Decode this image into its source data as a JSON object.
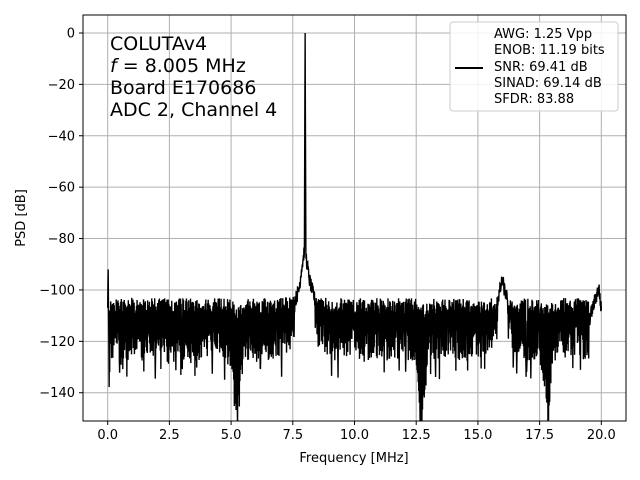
{
  "chart_data": {
    "type": "line",
    "xlabel": "Frequency [MHz]",
    "ylabel": "PSD [dB]",
    "xlim": [
      -1.0,
      21.0
    ],
    "ylim": [
      -151,
      7
    ],
    "xticks": [
      0.0,
      2.5,
      5.0,
      7.5,
      10.0,
      12.5,
      15.0,
      17.5,
      20.0
    ],
    "xtick_labels": [
      "0.0",
      "2.5",
      "5.0",
      "7.5",
      "10.0",
      "12.5",
      "15.0",
      "17.5",
      "20.0"
    ],
    "yticks": [
      0,
      -20,
      -40,
      -60,
      -80,
      -100,
      -120,
      -140
    ],
    "ytick_labels": [
      "0",
      "−20",
      "−40",
      "−60",
      "−80",
      "−100",
      "−120",
      "−140"
    ],
    "grid": true,
    "annotation": {
      "line1": "COLUTAv4",
      "line2_italic": "f",
      "line2_rest": " = 8.005 MHz",
      "line3": "Board E170686",
      "line4": "ADC 2, Channel 4"
    },
    "legend": {
      "placement": "top-right",
      "lines": [
        "AWG: 1.25 Vpp",
        "ENOB: 11.19 bits",
        "SNR: 69.41 dB",
        "SINAD: 69.14 dB",
        "SFDR: 83.88"
      ]
    },
    "series": [
      {
        "color": "#000000",
        "noise_band_db": [
          -135,
          -103
        ],
        "x": [
          0.0,
          0.02,
          0.05,
          0.1,
          0.3,
          0.6,
          1.0,
          1.5,
          2.0,
          2.5,
          3.0,
          3.5,
          4.0,
          4.5,
          5.0,
          5.25,
          5.5,
          6.0,
          6.5,
          7.0,
          7.4,
          7.6,
          7.75,
          7.85,
          7.92,
          7.97,
          8.0,
          8.03,
          8.08,
          8.15,
          8.25,
          8.4,
          8.6,
          9.0,
          9.5,
          10.0,
          10.5,
          11.0,
          11.5,
          12.0,
          12.5,
          12.65,
          13.0,
          13.5,
          14.0,
          14.5,
          15.0,
          15.5,
          15.8,
          15.95,
          16.0,
          16.05,
          16.2,
          16.5,
          17.0,
          17.5,
          17.85,
          18.0,
          18.5,
          19.0,
          19.5,
          19.9,
          20.0
        ],
        "y": [
          -107,
          -92,
          -124,
          -113,
          -111,
          -115,
          -110,
          -112,
          -109,
          -114,
          -111,
          -113,
          -110,
          -112,
          -115,
          -143,
          -111,
          -113,
          -112,
          -110,
          -108,
          -104,
          -100,
          -92,
          -88,
          -84,
          0,
          -86,
          -90,
          -95,
          -99,
          -104,
          -108,
          -111,
          -112,
          -110,
          -113,
          -111,
          -112,
          -110,
          -114,
          -143,
          -112,
          -111,
          -110,
          -113,
          -111,
          -108,
          -104,
          -98,
          -96,
          -99,
          -104,
          -110,
          -112,
          -111,
          -142,
          -113,
          -111,
          -110,
          -112,
          -99,
          -108
        ]
      }
    ]
  }
}
